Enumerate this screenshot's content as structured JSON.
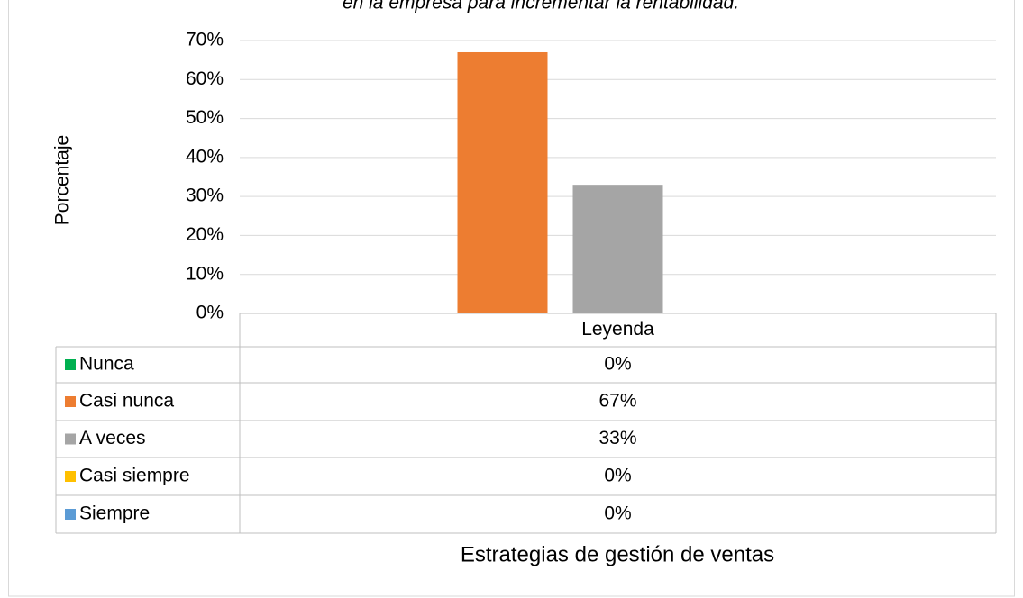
{
  "chart_data": {
    "type": "bar",
    "title": "en la empresa para incrementar la rentabilidad.",
    "y_label": "Porcentaje",
    "x_label": "Estrategias de gestión de ventas",
    "categories": [
      "Leyenda"
    ],
    "series": [
      {
        "name": "Nunca",
        "color": "#00b050",
        "values": [
          0
        ],
        "value_labels": [
          "0%"
        ]
      },
      {
        "name": "Casi nunca",
        "color": "#ed7d31",
        "values": [
          67
        ],
        "value_labels": [
          "67%"
        ]
      },
      {
        "name": "A veces",
        "color": "#a5a5a5",
        "values": [
          33
        ],
        "value_labels": [
          "33%"
        ]
      },
      {
        "name": "Casi siempre",
        "color": "#ffc000",
        "values": [
          0
        ],
        "value_labels": [
          "0%"
        ]
      },
      {
        "name": "Siempre",
        "color": "#5b9bd5",
        "values": [
          0
        ],
        "value_labels": [
          "0%"
        ]
      }
    ],
    "ylim": [
      0,
      70
    ],
    "yticks": [
      {
        "value": 0,
        "label": "0%"
      },
      {
        "value": 10,
        "label": "10%"
      },
      {
        "value": 20,
        "label": "20%"
      },
      {
        "value": 30,
        "label": "30%"
      },
      {
        "value": 40,
        "label": "40%"
      },
      {
        "value": 50,
        "label": "50%"
      },
      {
        "value": 60,
        "label": "60%"
      },
      {
        "value": 70,
        "label": "70%"
      }
    ],
    "grid": true
  }
}
